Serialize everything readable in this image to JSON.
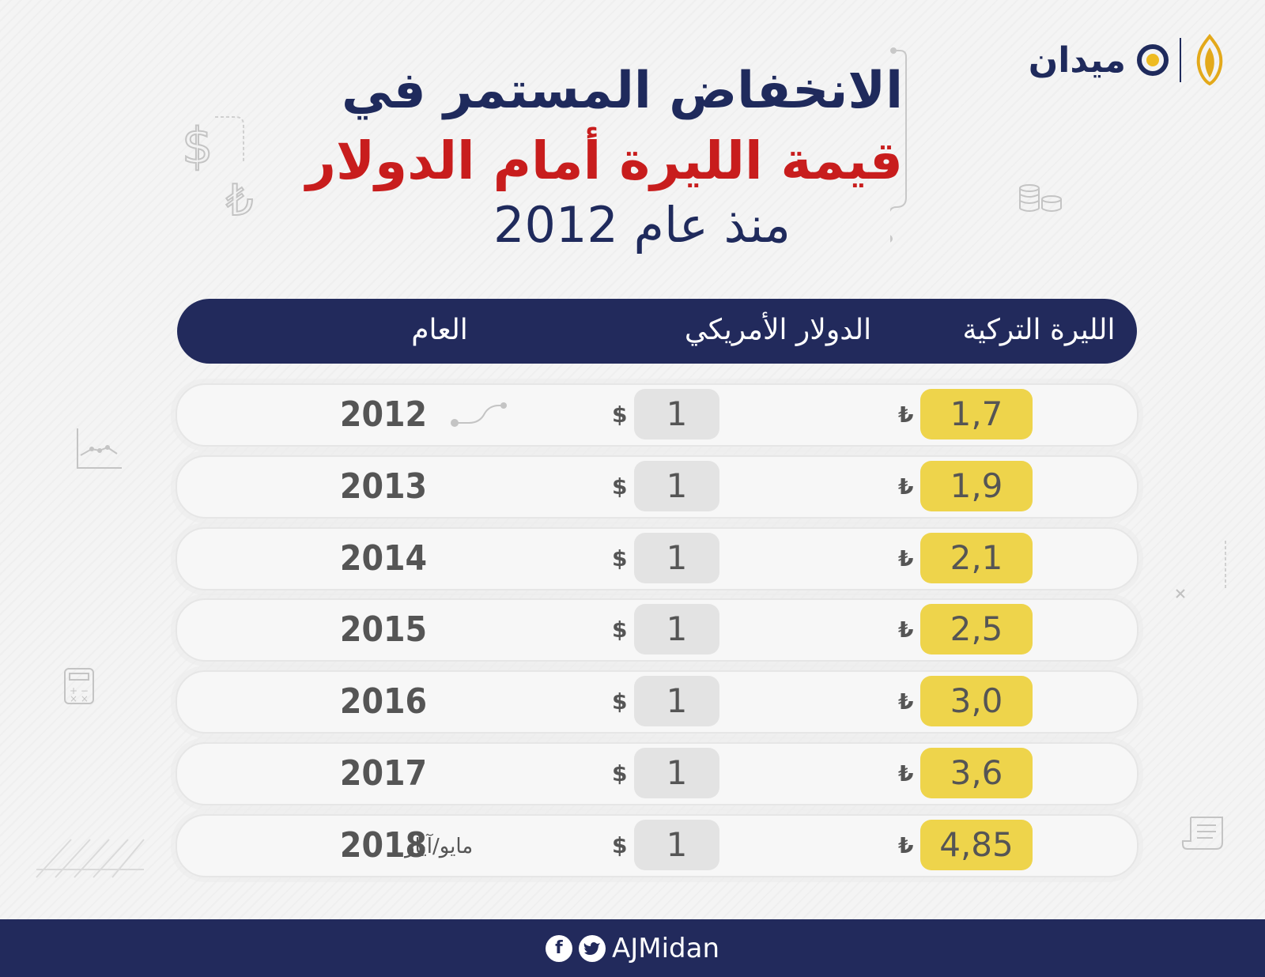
{
  "brand": {
    "name": "ميدان",
    "handle": "AJMidan"
  },
  "title": {
    "line1": "الانخفاض المستمر في",
    "line2": "قيمة الليرة أمام الدولار",
    "line3": "منذ عام 2012"
  },
  "table": {
    "headers": {
      "lira": "الليرة التركية",
      "usd": "الدولار الأمريكي",
      "year": "العام"
    },
    "lira_symbol": "₺",
    "usd_symbol": "$",
    "rows": [
      {
        "year": "2012",
        "usd": "1",
        "lira": "1,7",
        "note": ""
      },
      {
        "year": "2013",
        "usd": "1",
        "lira": "1,9",
        "note": ""
      },
      {
        "year": "2014",
        "usd": "1",
        "lira": "2,1",
        "note": ""
      },
      {
        "year": "2015",
        "usd": "1",
        "lira": "2,5",
        "note": ""
      },
      {
        "year": "2016",
        "usd": "1",
        "lira": "3,0",
        "note": ""
      },
      {
        "year": "2017",
        "usd": "1",
        "lira": "3,6",
        "note": ""
      },
      {
        "year": "2018",
        "usd": "1",
        "lira": "4,85",
        "note": "مايو/آيار"
      }
    ]
  },
  "colors": {
    "navy": "#222a5c",
    "red": "#c81d1d",
    "yellow": "#eed44b",
    "gray_pill": "#e3e3e3"
  },
  "icons": [
    "dollar-icon",
    "lira-icon",
    "coins-icon",
    "chart-icon",
    "calculator-icon",
    "receipt-icon",
    "facebook-icon",
    "twitter-icon",
    "midan-logo-icon",
    "aljazeera-logo-icon"
  ]
}
